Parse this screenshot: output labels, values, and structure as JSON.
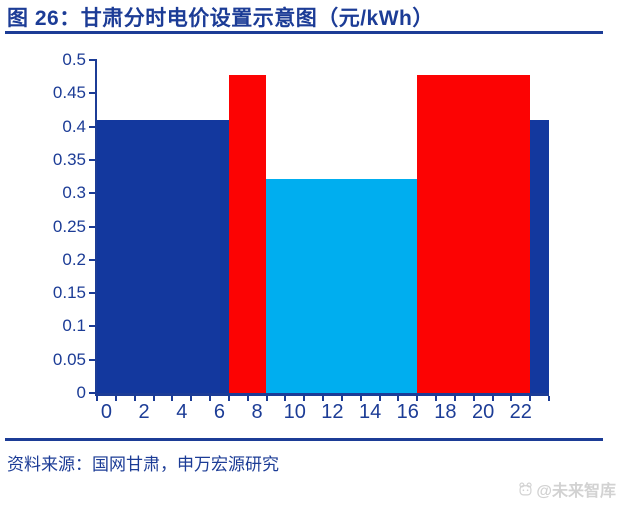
{
  "header": {
    "title": "图 26：甘肃分时电价设置示意图（元/kWh）"
  },
  "chart_data": {
    "type": "bar",
    "title": "甘肃分时电价设置示意图",
    "unit": "元/kWh",
    "xlabel": "",
    "ylabel": "",
    "ylim": [
      0,
      0.5
    ],
    "grid": false,
    "legend_position": "none",
    "x_hours": [
      0,
      1,
      2,
      3,
      4,
      5,
      6,
      7,
      8,
      9,
      10,
      11,
      12,
      13,
      14,
      15,
      16,
      17,
      18,
      19,
      20,
      21,
      22,
      23
    ],
    "values": [
      0.41,
      0.41,
      0.41,
      0.41,
      0.41,
      0.41,
      0.41,
      0.477,
      0.477,
      0.322,
      0.322,
      0.322,
      0.322,
      0.322,
      0.322,
      0.322,
      0.322,
      0.477,
      0.477,
      0.477,
      0.477,
      0.477,
      0.477,
      0.41
    ],
    "bar_colors": [
      "#13389e",
      "#13389e",
      "#13389e",
      "#13389e",
      "#13389e",
      "#13389e",
      "#13389e",
      "#fc0303",
      "#fc0303",
      "#00aeef",
      "#00aeef",
      "#00aeef",
      "#00aeef",
      "#00aeef",
      "#00aeef",
      "#00aeef",
      "#00aeef",
      "#fc0303",
      "#fc0303",
      "#fc0303",
      "#fc0303",
      "#fc0303",
      "#fc0303",
      "#13389e"
    ],
    "segments": [
      {
        "start_hour": 0,
        "end_hour": 6,
        "value": 0.41,
        "color": "#13389e"
      },
      {
        "start_hour": 7,
        "end_hour": 8,
        "value": 0.477,
        "color": "#fc0303"
      },
      {
        "start_hour": 9,
        "end_hour": 16,
        "value": 0.322,
        "color": "#00aeef"
      },
      {
        "start_hour": 17,
        "end_hour": 22,
        "value": 0.477,
        "color": "#fc0303"
      },
      {
        "start_hour": 23,
        "end_hour": 23,
        "value": 0.41,
        "color": "#13389e"
      }
    ],
    "y_ticks": [
      {
        "v": 0.0,
        "label": "0"
      },
      {
        "v": 0.05,
        "label": "0.05"
      },
      {
        "v": 0.1,
        "label": "0.1"
      },
      {
        "v": 0.15,
        "label": "0.15"
      },
      {
        "v": 0.2,
        "label": "0.2"
      },
      {
        "v": 0.25,
        "label": "0.25"
      },
      {
        "v": 0.3,
        "label": "0.3"
      },
      {
        "v": 0.35,
        "label": "0.35"
      },
      {
        "v": 0.4,
        "label": "0.4"
      },
      {
        "v": 0.45,
        "label": "0.45"
      },
      {
        "v": 0.5,
        "label": "0.5"
      }
    ],
    "x_tick_labels": [
      "0",
      "2",
      "4",
      "6",
      "8",
      "10",
      "12",
      "14",
      "16",
      "18",
      "20",
      "22"
    ]
  },
  "footer": {
    "source": "资料来源：国网甘肃，申万宏源研究",
    "watermark": "@未来智库"
  },
  "colors": {
    "navy": "#1c3c96",
    "bar_dark_blue": "#13389e",
    "bar_red": "#fc0303",
    "bar_light_blue": "#00aeef",
    "watermark_gray": "#d2d2d2"
  }
}
